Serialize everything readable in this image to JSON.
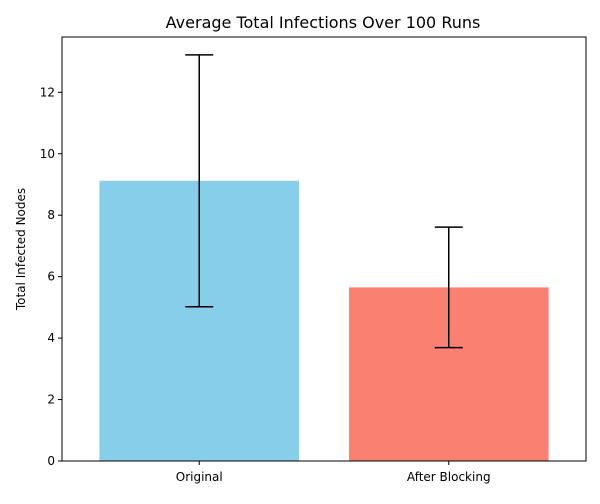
{
  "chart_data": {
    "type": "bar",
    "title": "Average Total Infections Over 100 Runs",
    "xlabel": "",
    "ylabel": "Total Infected Nodes",
    "categories": [
      "Original",
      "After Blocking"
    ],
    "values": [
      9.12,
      5.65
    ],
    "error": [
      4.1,
      1.96
    ],
    "colors": [
      "#87ceeb",
      "#fa8072"
    ],
    "ylim": [
      0,
      13.8
    ],
    "yticks": [
      0,
      2,
      4,
      6,
      8,
      10,
      12
    ],
    "grid": false,
    "legend": "none"
  }
}
